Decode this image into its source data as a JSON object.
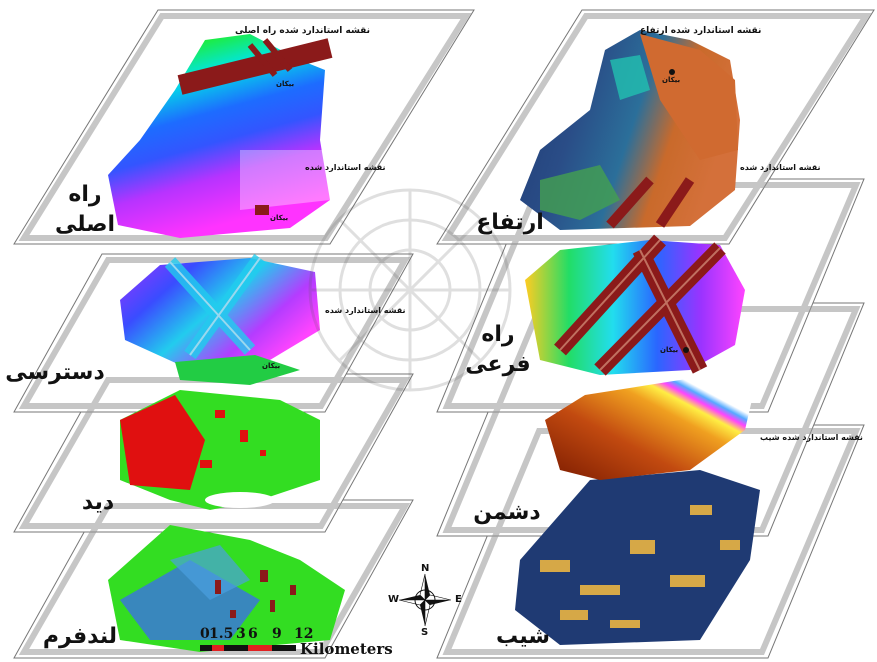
{
  "left_column": {
    "panels": [
      {
        "label_line1": "راه",
        "label_line2": "اصلی",
        "title": "نقشه استاندارد شده راه اصلی",
        "town": "بیکان"
      },
      {
        "label_line1": "دسترسی",
        "label_line2": "",
        "title": "نقشه استاندارد شده",
        "town": "بیکان"
      },
      {
        "label_line1": "دید",
        "label_line2": "",
        "title": "نقشه استاندارد شده",
        "town": "بیکان"
      },
      {
        "label_line1": "لندفرم",
        "label_line2": "",
        "title": "",
        "town": ""
      }
    ]
  },
  "right_column": {
    "panels": [
      {
        "label_line1": "ارتفاع",
        "label_line2": "",
        "title": "نقشه استاندارد شده ارتفاع",
        "town": "بیکان"
      },
      {
        "label_line1": "راه",
        "label_line2": "فرعی",
        "title": "نقشه استاندارد شده",
        "town": "بیکان"
      },
      {
        "label_line1": "دشمن",
        "label_line2": "",
        "title": "نقشه استاندارد شده شیب",
        "town": ""
      },
      {
        "label_line1": "شیب",
        "label_line2": "",
        "title": "",
        "town": ""
      }
    ]
  },
  "scale_bar": {
    "ticks": [
      "0",
      "1.5",
      "3",
      "6",
      "9",
      "12"
    ],
    "unit": "Kilometers"
  },
  "compass": {
    "n": "N",
    "s": "S",
    "e": "E",
    "w": "W"
  },
  "colors": {
    "road": "#8b1a1a",
    "slope_bg": "#1f3a73",
    "slope_spots": "#d6a847",
    "visibility_red": "#e01010",
    "green": "#33dd22",
    "landform_blue": "#3b78d8"
  }
}
